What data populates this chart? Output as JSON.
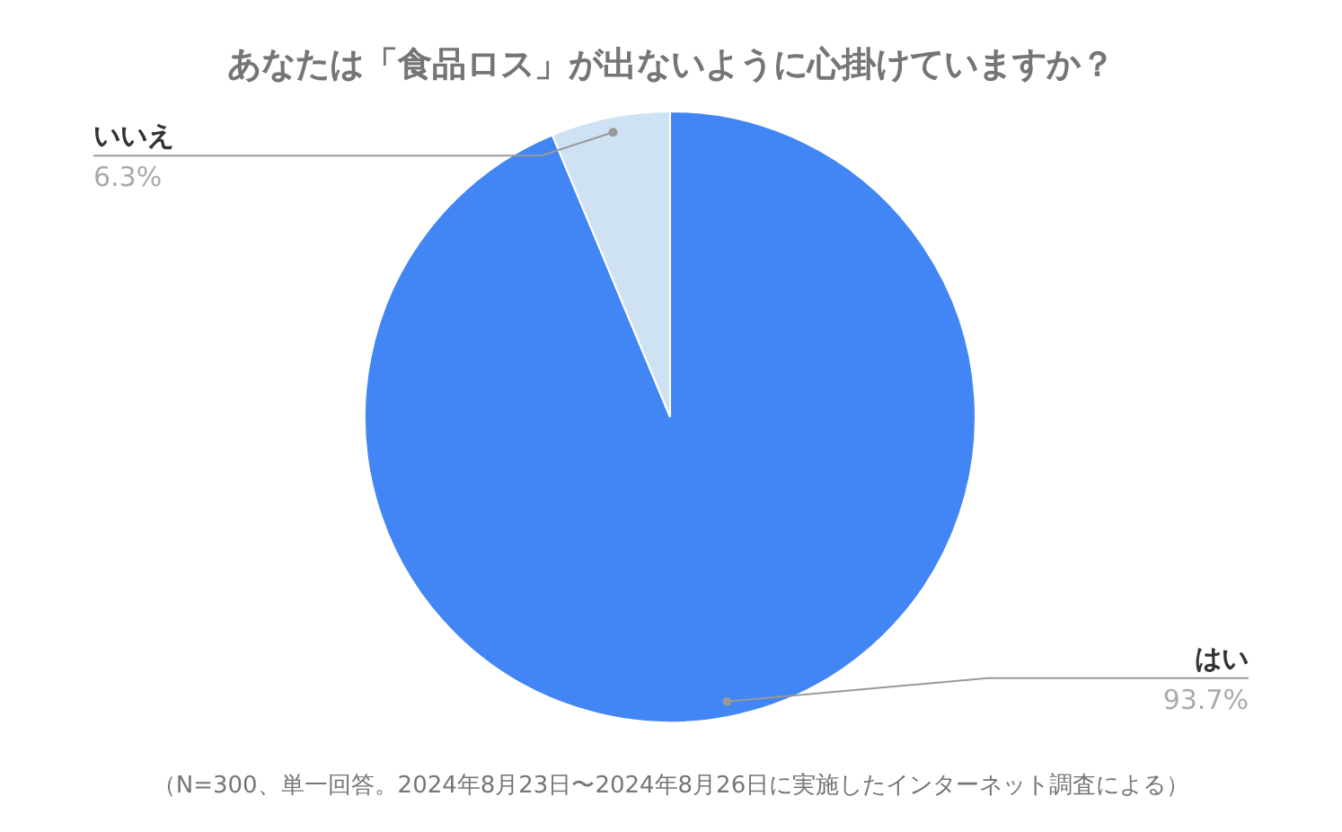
{
  "chart_data": {
    "type": "pie",
    "title": "あなたは「食品ロス」が出ないように心掛けていますか？",
    "categories": [
      "はい",
      "いいえ"
    ],
    "values": [
      93.7,
      6.3
    ],
    "colors": [
      "#4285f4",
      "#cfe2f3"
    ],
    "value_labels": [
      "93.7%",
      "6.3%"
    ],
    "annotations": [
      "（N=300、単一回答。2024年8月23日〜2024年8月26日に実施したインターネット調査による）"
    ]
  }
}
